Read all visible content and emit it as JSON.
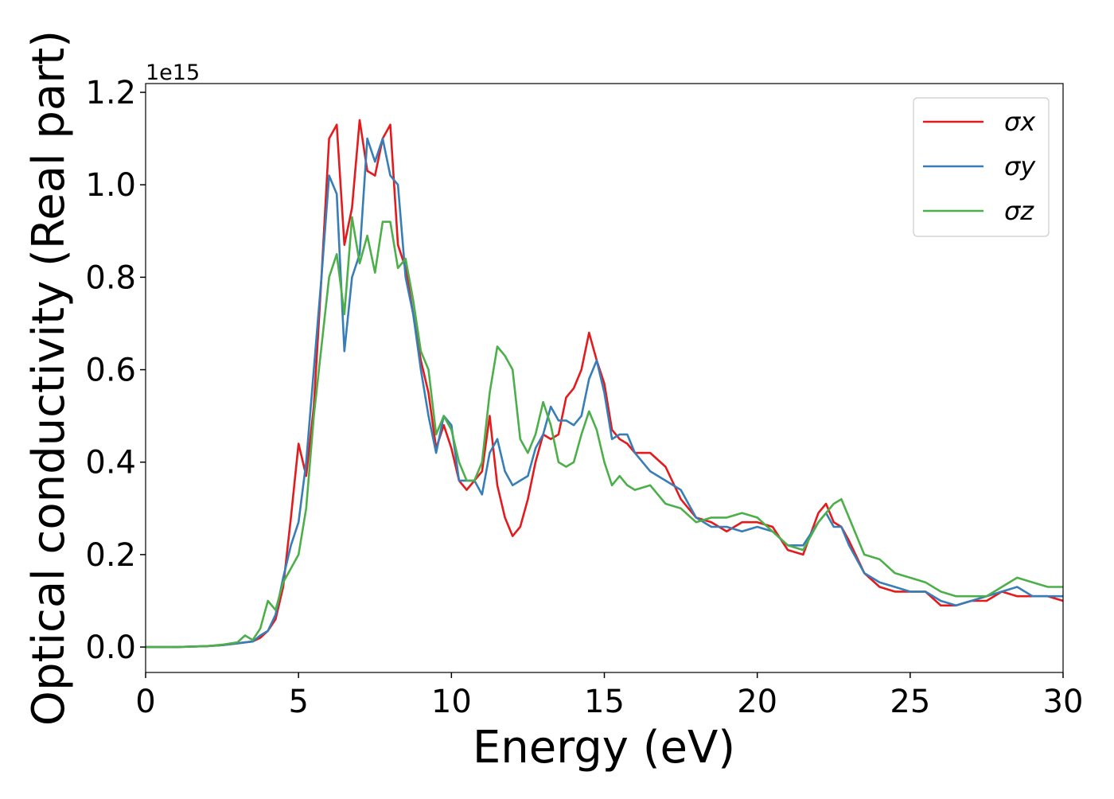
{
  "chart_data": {
    "type": "line",
    "xlabel": "Energy (eV)",
    "ylabel": "Optical conductivity (Real part)",
    "offset_label": "1e15",
    "x": [
      0,
      1,
      2,
      2.5,
      3,
      3.25,
      3.5,
      3.75,
      4,
      4.25,
      4.5,
      4.75,
      5,
      5.25,
      5.5,
      5.75,
      6,
      6.25,
      6.5,
      6.75,
      7,
      7.25,
      7.5,
      7.75,
      8,
      8.25,
      8.5,
      8.75,
      9,
      9.25,
      9.5,
      9.75,
      10,
      10.25,
      10.5,
      10.75,
      11,
      11.25,
      11.5,
      11.75,
      12,
      12.25,
      12.5,
      12.75,
      13,
      13.25,
      13.5,
      13.75,
      14,
      14.25,
      14.5,
      14.75,
      15,
      15.25,
      15.5,
      15.75,
      16,
      16.5,
      17,
      17.5,
      18,
      18.5,
      19,
      19.5,
      20,
      20.5,
      21,
      21.5,
      22,
      22.25,
      22.5,
      22.75,
      23,
      23.5,
      24,
      24.5,
      25,
      25.5,
      26,
      26.5,
      27,
      27.5,
      28,
      28.5,
      29,
      29.5,
      30
    ],
    "series": [
      {
        "name": "σx",
        "color": "#e41a1c",
        "values": [
          0,
          0,
          0.002,
          0.004,
          0.008,
          0.01,
          0.012,
          0.02,
          0.035,
          0.06,
          0.13,
          0.28,
          0.44,
          0.37,
          0.52,
          0.8,
          1.1,
          1.13,
          0.87,
          0.95,
          1.14,
          1.03,
          1.02,
          1.1,
          1.13,
          0.87,
          0.82,
          0.72,
          0.62,
          0.55,
          0.43,
          0.48,
          0.43,
          0.36,
          0.34,
          0.36,
          0.38,
          0.5,
          0.35,
          0.28,
          0.24,
          0.26,
          0.32,
          0.4,
          0.46,
          0.45,
          0.46,
          0.54,
          0.56,
          0.6,
          0.68,
          0.62,
          0.57,
          0.47,
          0.45,
          0.44,
          0.42,
          0.42,
          0.39,
          0.32,
          0.28,
          0.27,
          0.25,
          0.27,
          0.27,
          0.26,
          0.21,
          0.2,
          0.29,
          0.31,
          0.27,
          0.26,
          0.23,
          0.16,
          0.13,
          0.12,
          0.12,
          0.12,
          0.09,
          0.09,
          0.1,
          0.1,
          0.12,
          0.11,
          0.11,
          0.11,
          0.1
        ]
      },
      {
        "name": "σy",
        "color": "#377eb8",
        "values": [
          0,
          0,
          0.002,
          0.004,
          0.008,
          0.01,
          0.012,
          0.025,
          0.035,
          0.07,
          0.15,
          0.22,
          0.27,
          0.4,
          0.6,
          0.8,
          1.02,
          0.98,
          0.64,
          0.8,
          0.85,
          1.1,
          1.05,
          1.1,
          1.02,
          1.0,
          0.8,
          0.72,
          0.6,
          0.5,
          0.42,
          0.5,
          0.48,
          0.36,
          0.36,
          0.36,
          0.33,
          0.42,
          0.45,
          0.38,
          0.35,
          0.36,
          0.37,
          0.43,
          0.46,
          0.52,
          0.49,
          0.49,
          0.48,
          0.5,
          0.58,
          0.62,
          0.55,
          0.45,
          0.46,
          0.46,
          0.42,
          0.38,
          0.36,
          0.34,
          0.28,
          0.26,
          0.26,
          0.25,
          0.26,
          0.25,
          0.22,
          0.22,
          0.27,
          0.29,
          0.26,
          0.26,
          0.22,
          0.16,
          0.14,
          0.13,
          0.12,
          0.12,
          0.1,
          0.09,
          0.1,
          0.11,
          0.12,
          0.13,
          0.11,
          0.11,
          0.11
        ]
      },
      {
        "name": "σz",
        "color": "#4daf4a",
        "values": [
          0,
          0,
          0.002,
          0.005,
          0.01,
          0.025,
          0.015,
          0.04,
          0.1,
          0.08,
          0.14,
          0.17,
          0.2,
          0.3,
          0.5,
          0.65,
          0.8,
          0.85,
          0.72,
          0.93,
          0.83,
          0.89,
          0.81,
          0.92,
          0.92,
          0.82,
          0.84,
          0.75,
          0.64,
          0.6,
          0.46,
          0.5,
          0.47,
          0.4,
          0.36,
          0.36,
          0.4,
          0.55,
          0.65,
          0.63,
          0.6,
          0.45,
          0.42,
          0.46,
          0.53,
          0.48,
          0.4,
          0.39,
          0.4,
          0.46,
          0.51,
          0.47,
          0.4,
          0.35,
          0.37,
          0.35,
          0.34,
          0.35,
          0.31,
          0.3,
          0.27,
          0.28,
          0.28,
          0.29,
          0.28,
          0.25,
          0.22,
          0.21,
          0.27,
          0.29,
          0.31,
          0.32,
          0.28,
          0.2,
          0.19,
          0.16,
          0.15,
          0.14,
          0.12,
          0.11,
          0.11,
          0.11,
          0.13,
          0.15,
          0.14,
          0.13,
          0.13
        ]
      }
    ],
    "xlim": [
      0,
      30
    ],
    "xticks": [
      0,
      5,
      10,
      15,
      20,
      25,
      30
    ],
    "ylim": [
      -0.055,
      1.219
    ],
    "yticks": [
      {
        "value": 0,
        "label": "0.0"
      },
      0.2,
      0.4,
      0.6,
      0.8,
      {
        "value": 1,
        "label": "1.0"
      },
      1.2
    ],
    "legend": "upper right",
    "grid": false
  }
}
